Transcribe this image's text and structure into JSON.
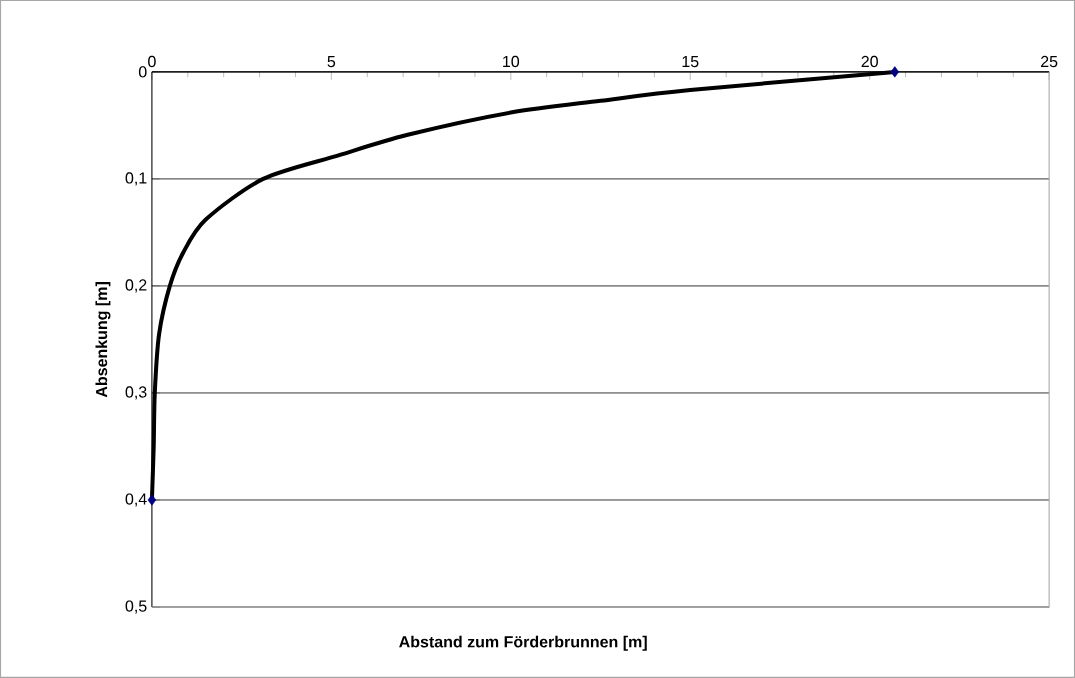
{
  "chart_data": {
    "type": "line",
    "xlabel": "Abstand zum Förderbrunnen [m]",
    "ylabel": "Absenkung [m]",
    "xlim": [
      0,
      25
    ],
    "xticks": [
      0,
      5,
      10,
      15,
      20,
      25
    ],
    "ylim": [
      0.5,
      0
    ],
    "yticks": [
      0,
      {
        "value": 0.1,
        "label": "0,1"
      },
      {
        "value": 0.2,
        "label": "0,2"
      },
      {
        "value": 0.3,
        "label": "0,3"
      },
      {
        "value": 0.4,
        "label": "0,4"
      },
      {
        "value": 0.5,
        "label": "0,5"
      }
    ],
    "grid": "y",
    "series": [
      {
        "color": "#000000",
        "marker": "none",
        "line_style": "solid",
        "x": [
          20.7,
          15,
          12.5,
          10,
          7.1,
          5.2,
          3.1,
          1.5,
          0.87,
          0.5,
          0.2,
          0.08,
          0.05,
          0
        ],
        "values": [
          0,
          0.017,
          0.027,
          0.038,
          0.059,
          0.078,
          0.1,
          0.138,
          0.169,
          0.2,
          0.245,
          0.3,
          0.35,
          0.4
        ]
      },
      {
        "type": "scatter",
        "color": "#000080",
        "marker": "diamond",
        "x": [
          20.7,
          0
        ],
        "values": [
          0,
          0.4
        ]
      }
    ]
  }
}
